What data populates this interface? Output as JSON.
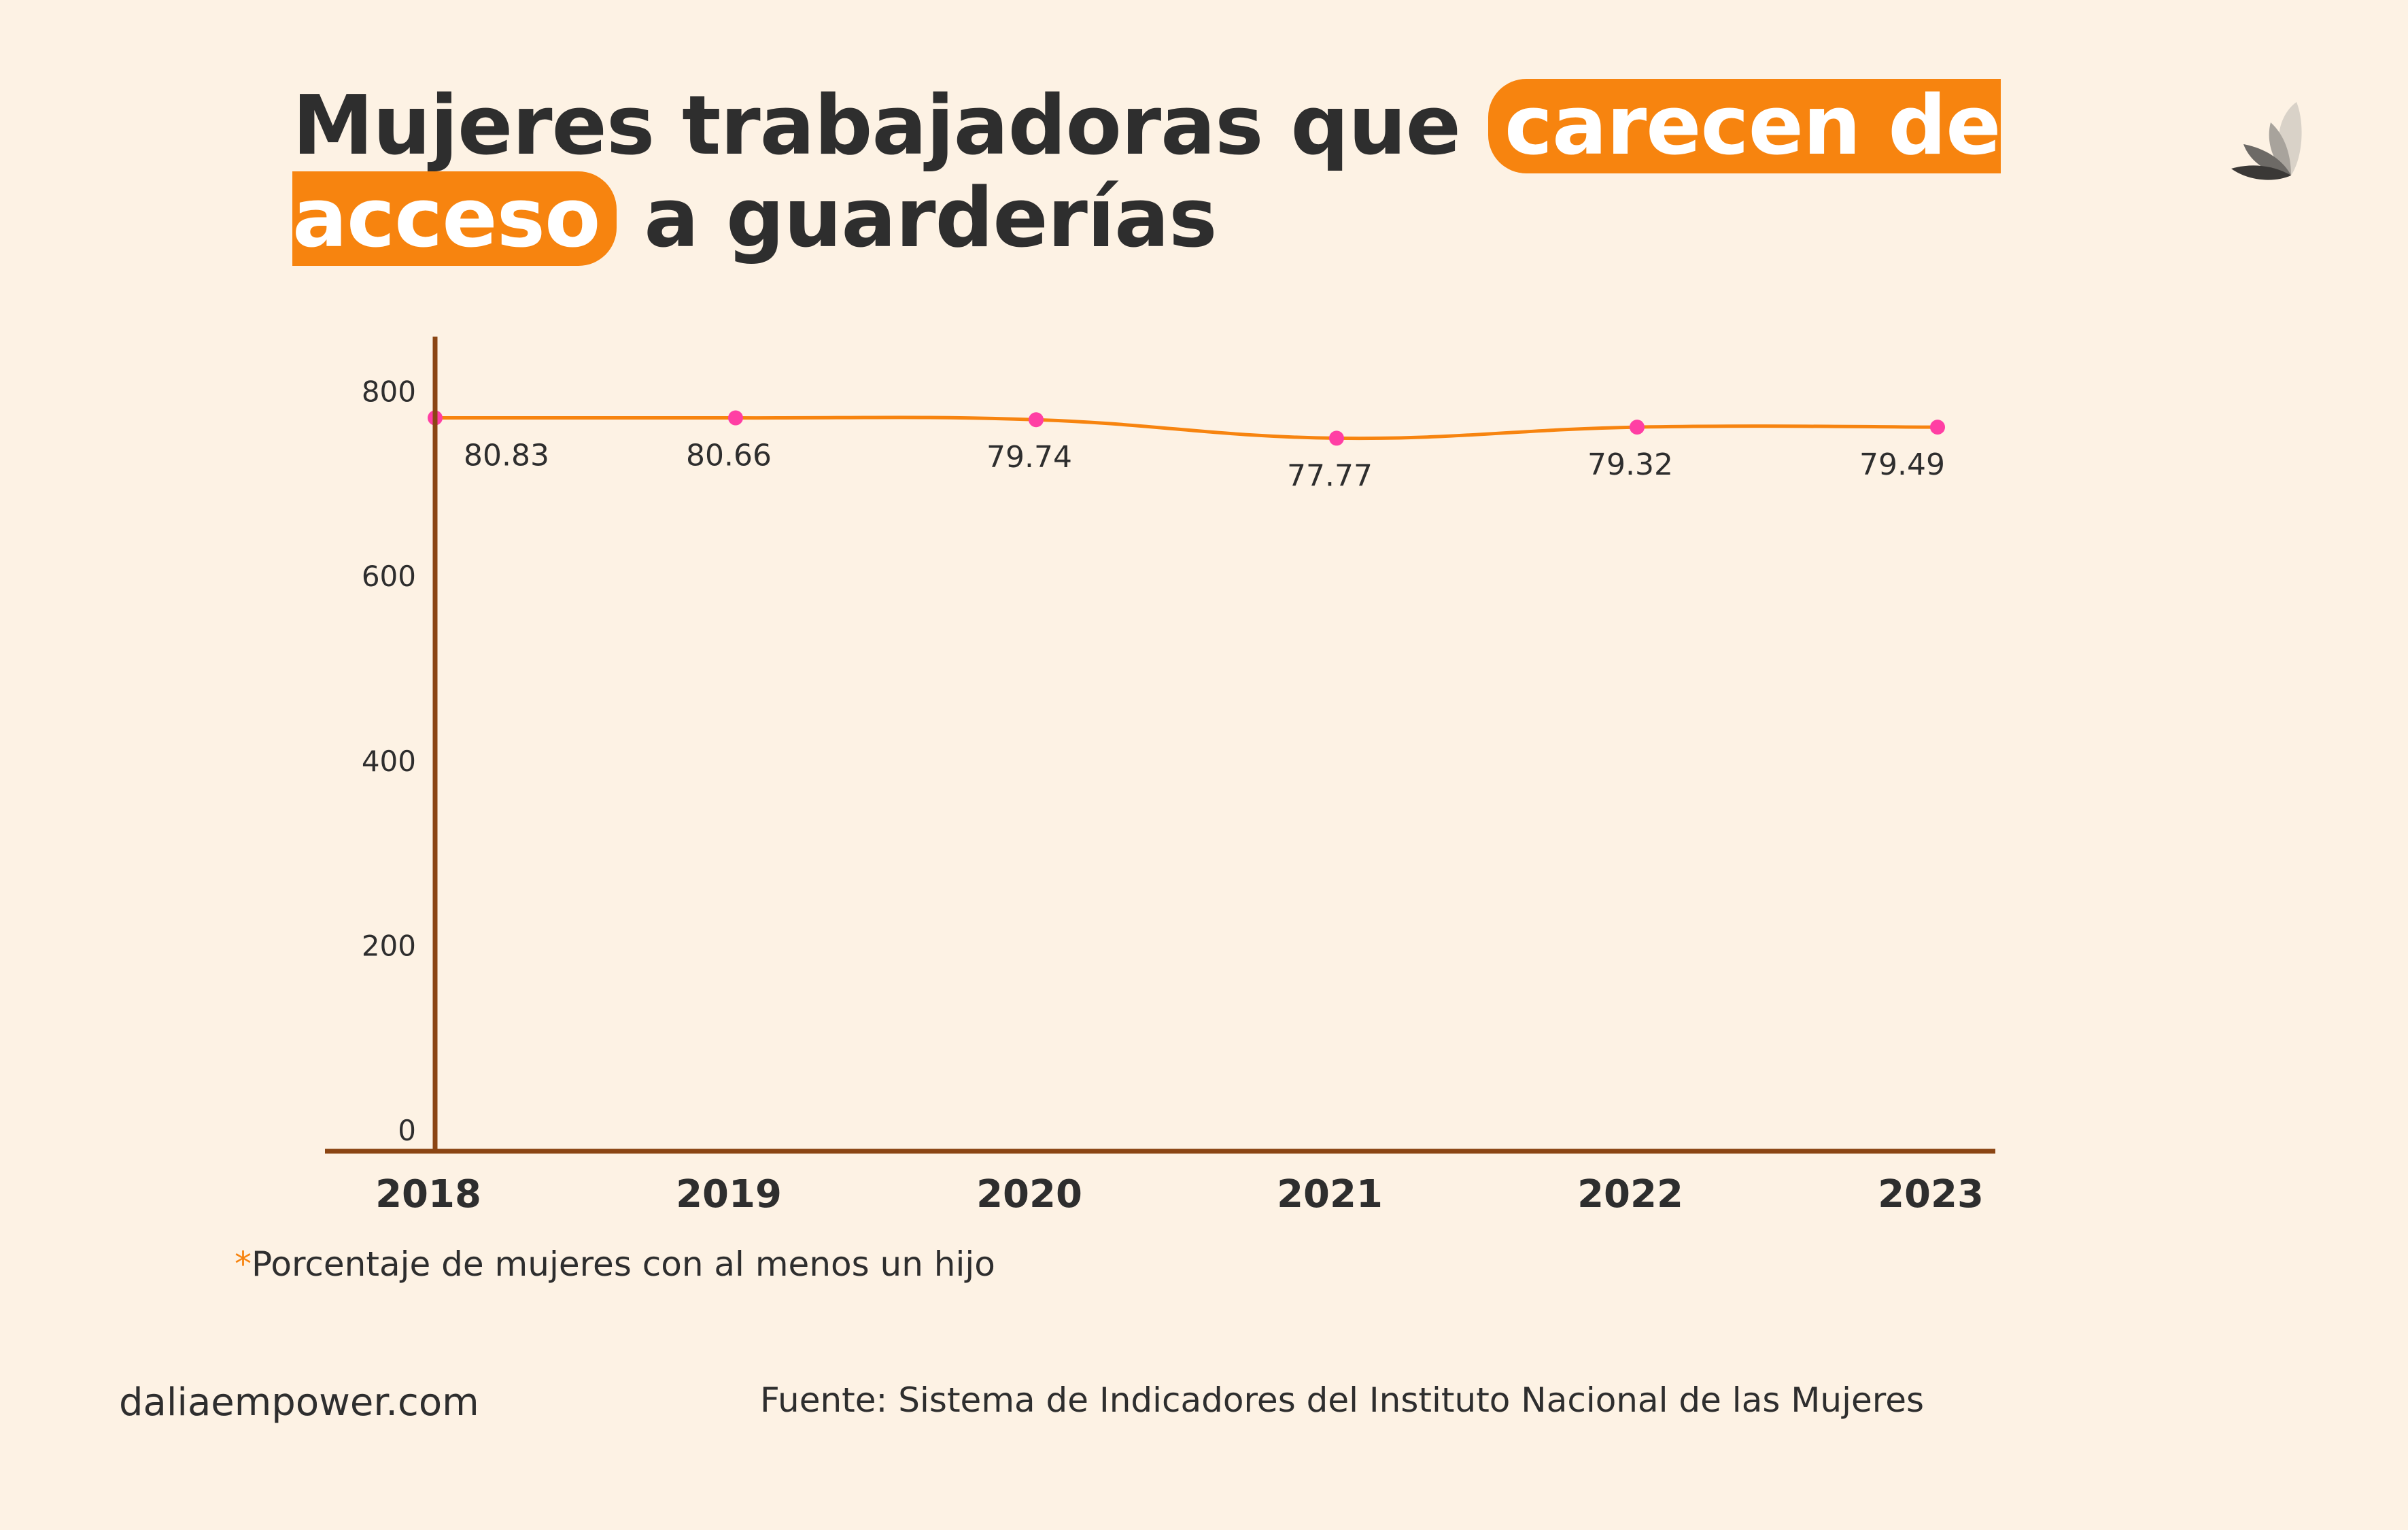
{
  "title": {
    "before": "Mujeres trabajadoras que ",
    "highlight": "carecen de acceso",
    "after": " a guarderías"
  },
  "logo_icon": "dalia-flower-icon",
  "chart_data": {
    "type": "line",
    "categories": [
      "2018",
      "2019",
      "2020",
      "2021",
      "2022",
      "2023"
    ],
    "series": [
      {
        "values": [
          80.83,
          80.66,
          79.74,
          77.77,
          79.32,
          79.49
        ]
      }
    ],
    "data_labels": [
      "80.83",
      "80.66",
      "79.74",
      "77.77",
      "79.32",
      "79.49"
    ],
    "plotted_values": [
      772,
      772,
      770,
      750,
      762,
      762
    ],
    "yticks": [
      "0",
      "200",
      "400",
      "600",
      "800"
    ],
    "ylim": [
      -22,
      860
    ],
    "grid": false,
    "colors": {
      "line": "#f7840f",
      "point": "#ff3fa4",
      "axis": "#8b4513"
    }
  },
  "footnote": {
    "star": "*",
    "text": "Porcentaje de mujeres con al menos un hijo"
  },
  "footer": {
    "site": "daliaempower.com",
    "source": "Fuente: Sistema de Indicadores del Instituto Nacional de las Mujeres"
  }
}
